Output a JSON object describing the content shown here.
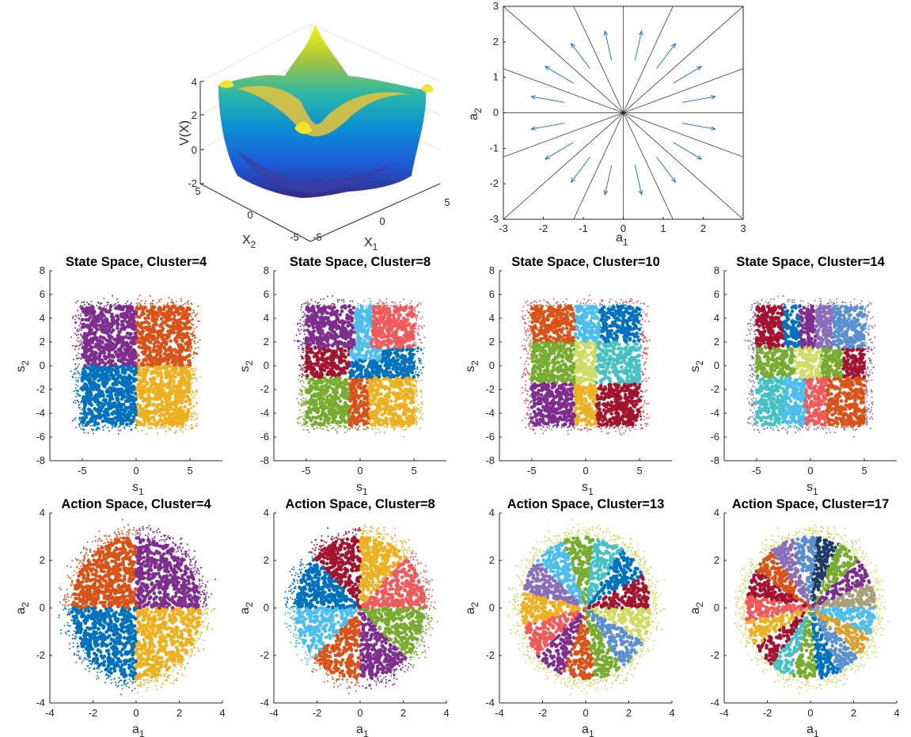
{
  "colors": {
    "blue": "#0072BD",
    "orange": "#D95319",
    "yellow": "#EDB120",
    "purple": "#7E2F8E",
    "green": "#77AC30",
    "cyan": "#4DBEEE",
    "maroon": "#A2142F",
    "salmon": "#F05A5A",
    "teal": "#45C1C4",
    "lime": "#CDDC63",
    "lavender": "#8A6FB8",
    "skyblue": "#5A8FD0",
    "navy": "#1F3A68",
    "olive": "#A7A07A",
    "gold": "#D9A030",
    "quiver": "#2B7BBA"
  },
  "chart_data": [
    {
      "id": "potential-surface",
      "type": "surface3d",
      "zlabel": "V(X)",
      "xlabel": "X_1",
      "ylabel": "X_2",
      "xticks": [
        "-5",
        "0",
        "5"
      ],
      "yticks": [
        "-5",
        "0",
        "5"
      ],
      "zticks": [
        "-2",
        "0",
        "2",
        "4"
      ],
      "zlim": [
        -2,
        4
      ]
    },
    {
      "id": "action-directions",
      "type": "quiver",
      "xlabel": "a_1",
      "ylabel": "a_2",
      "xlim": [
        -3,
        3
      ],
      "ylim": [
        -3,
        3
      ],
      "xticks": [
        "-3",
        "-2",
        "-1",
        "0",
        "1",
        "2",
        "3"
      ],
      "yticks": [
        "-3",
        "-2",
        "-1",
        "0",
        "1",
        "2",
        "3"
      ],
      "n_directions": 16
    },
    {
      "id": "state-4",
      "type": "scatter",
      "title": "State Space, Cluster=4",
      "xlabel": "s_1",
      "ylabel": "s_2",
      "xlim": [
        -8,
        8
      ],
      "ylim": [
        -8,
        8
      ],
      "xticks": [
        "-5",
        "0",
        "5"
      ],
      "yticks": [
        "-8",
        "-6",
        "-4",
        "-2",
        "0",
        "2",
        "4",
        "6",
        "8"
      ],
      "clusters": 4
    },
    {
      "id": "state-8",
      "type": "scatter",
      "title": "State Space, Cluster=8",
      "xlabel": "s_1",
      "ylabel": "s_2",
      "xlim": [
        -8,
        8
      ],
      "ylim": [
        -8,
        8
      ],
      "xticks": [
        "-5",
        "0",
        "5"
      ],
      "yticks": [
        "-8",
        "-6",
        "-4",
        "-2",
        "0",
        "2",
        "4",
        "6",
        "8"
      ],
      "clusters": 8
    },
    {
      "id": "state-10",
      "type": "scatter",
      "title": "State Space, Cluster=10",
      "xlabel": "s_1",
      "ylabel": "s_2",
      "xlim": [
        -8,
        8
      ],
      "ylim": [
        -8,
        8
      ],
      "xticks": [
        "-5",
        "0",
        "5"
      ],
      "yticks": [
        "-8",
        "-6",
        "-4",
        "-2",
        "0",
        "2",
        "4",
        "6",
        "8"
      ],
      "clusters": 10
    },
    {
      "id": "state-14",
      "type": "scatter",
      "title": "State Space, Cluster=14",
      "xlabel": "s_1",
      "ylabel": "s_2",
      "xlim": [
        -8,
        8
      ],
      "ylim": [
        -8,
        8
      ],
      "xticks": [
        "-5",
        "0",
        "5"
      ],
      "yticks": [
        "-8",
        "-6",
        "-4",
        "-2",
        "0",
        "2",
        "4",
        "6",
        "8"
      ],
      "clusters": 14
    },
    {
      "id": "action-4",
      "type": "scatter",
      "title": "Action Space, Cluster=4",
      "xlabel": "a_1",
      "ylabel": "a_2",
      "xlim": [
        -4,
        4
      ],
      "ylim": [
        -4,
        4
      ],
      "xticks": [
        "-4",
        "-2",
        "0",
        "2",
        "4"
      ],
      "yticks": [
        "-4",
        "-2",
        "0",
        "2",
        "4"
      ],
      "clusters": 4
    },
    {
      "id": "action-8",
      "type": "scatter",
      "title": "Action Space, Cluster=8",
      "xlabel": "a_1",
      "ylabel": "a_2",
      "xlim": [
        -4,
        4
      ],
      "ylim": [
        -4,
        4
      ],
      "xticks": [
        "-4",
        "-2",
        "0",
        "2",
        "4"
      ],
      "yticks": [
        "-4",
        "-2",
        "0",
        "2",
        "4"
      ],
      "clusters": 8
    },
    {
      "id": "action-13",
      "type": "scatter",
      "title": "Action Space, Cluster=13",
      "xlabel": "a_1",
      "ylabel": "a_2",
      "xlim": [
        -4,
        4
      ],
      "ylim": [
        -4,
        4
      ],
      "xticks": [
        "-4",
        "-2",
        "0",
        "2",
        "4"
      ],
      "yticks": [
        "-4",
        "-2",
        "0",
        "2",
        "4"
      ],
      "clusters": 13
    },
    {
      "id": "action-17",
      "type": "scatter",
      "title": "Action Space, Cluster=17",
      "xlabel": "a_1",
      "ylabel": "a_2",
      "xlim": [
        -4,
        4
      ],
      "ylim": [
        -4,
        4
      ],
      "xticks": [
        "-4",
        "-2",
        "0",
        "2",
        "4"
      ],
      "yticks": [
        "-4",
        "-2",
        "0",
        "2",
        "4"
      ],
      "clusters": 17
    }
  ]
}
